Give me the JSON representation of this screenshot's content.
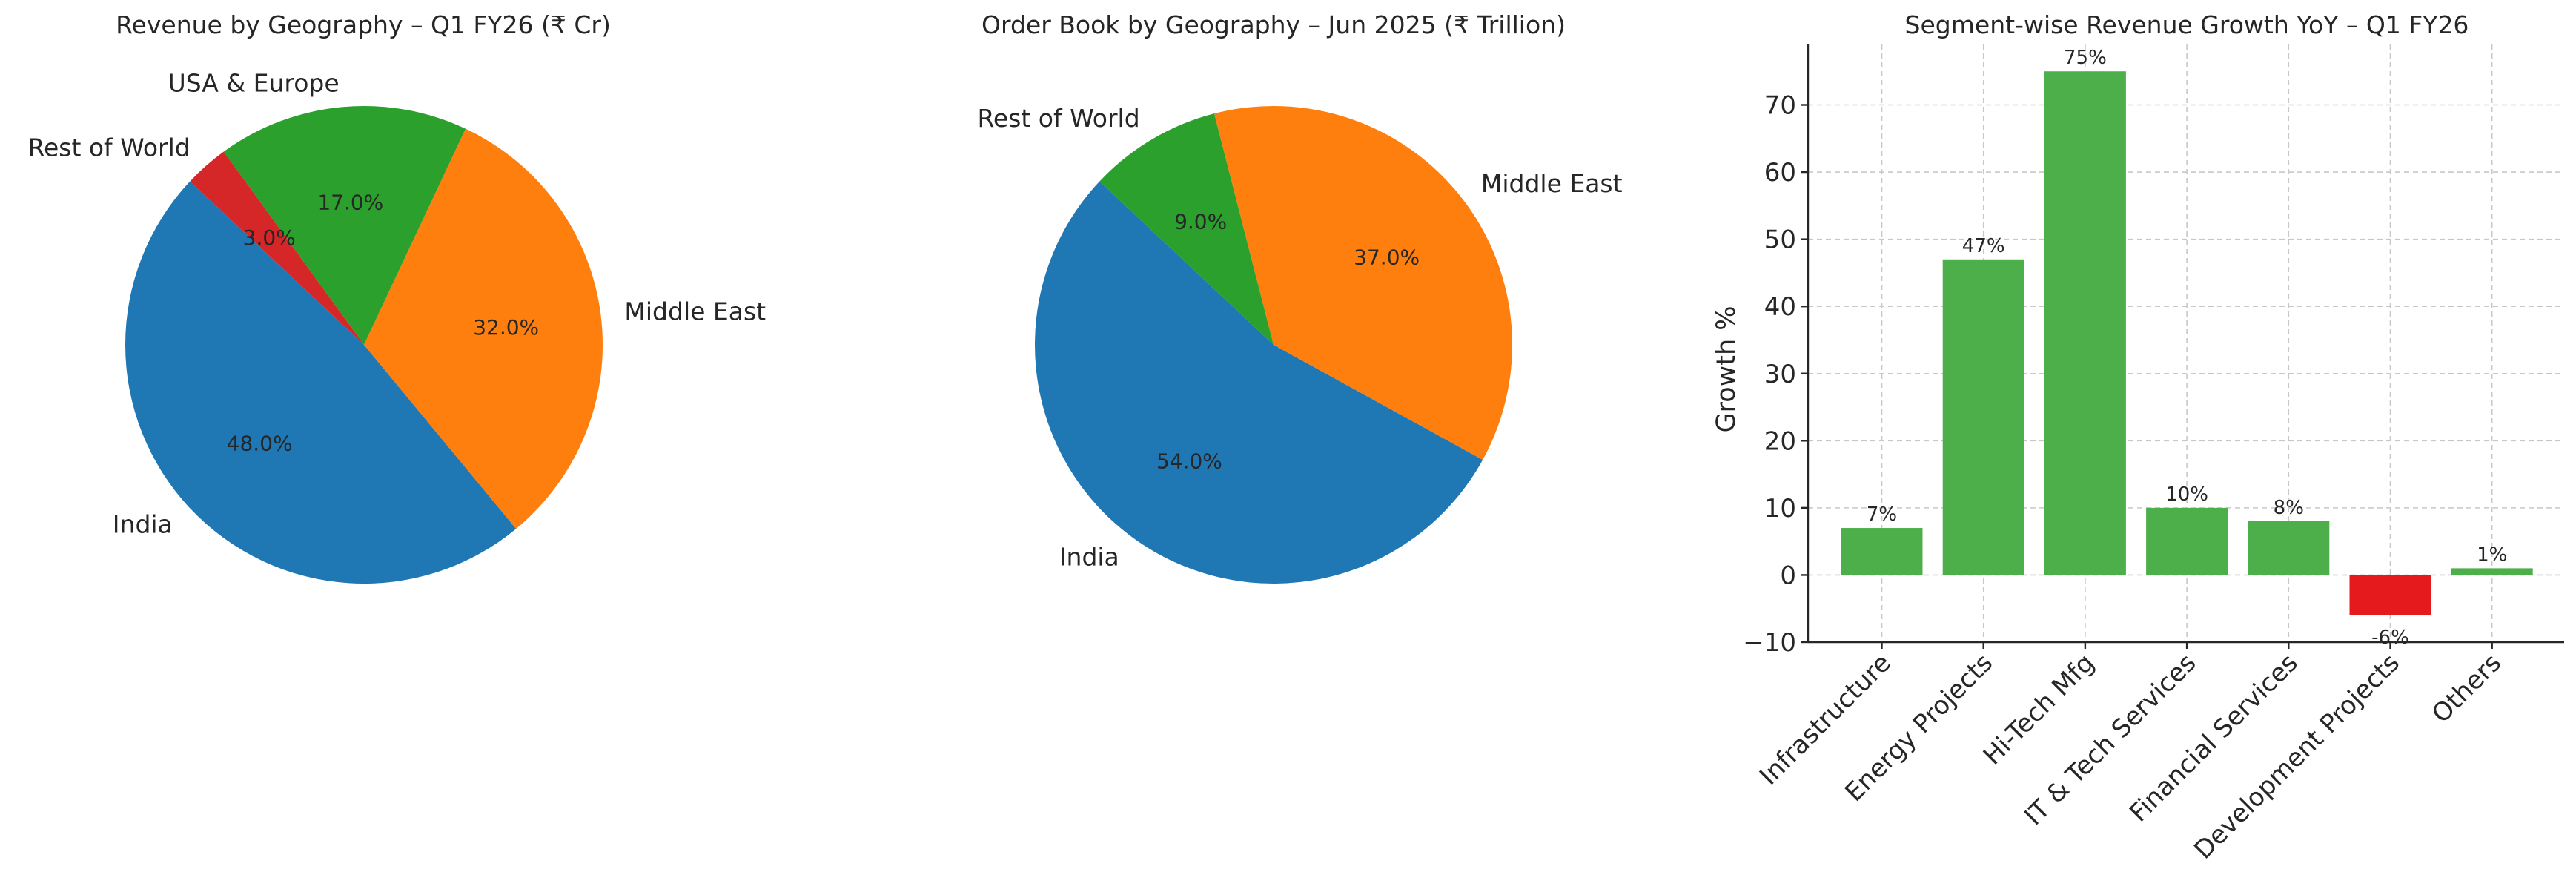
{
  "chart_data": [
    {
      "type": "pie",
      "title": "Revenue by Geography – Q1 FY26 (₹ Cr)",
      "slices": [
        {
          "label": "India",
          "value": 48.0,
          "pct_label": "48.0%",
          "color": "#1f77b4"
        },
        {
          "label": "Middle East",
          "value": 32.0,
          "pct_label": "32.0%",
          "color": "#ff7f0e"
        },
        {
          "label": "USA & Europe",
          "value": 17.0,
          "pct_label": "17.0%",
          "color": "#2ca02c"
        },
        {
          "label": "Rest of World",
          "value": 3.0,
          "pct_label": "3.0%",
          "color": "#d62728"
        }
      ]
    },
    {
      "type": "pie",
      "title": "Order Book by Geography – Jun 2025 (₹ Trillion)",
      "slices": [
        {
          "label": "India",
          "value": 54.0,
          "pct_label": "54.0%",
          "color": "#1f77b4"
        },
        {
          "label": "Middle East",
          "value": 37.0,
          "pct_label": "37.0%",
          "color": "#ff7f0e"
        },
        {
          "label": "Rest of World",
          "value": 9.0,
          "pct_label": "9.0%",
          "color": "#2ca02c"
        }
      ]
    },
    {
      "type": "bar",
      "title": "Segment-wise Revenue Growth YoY – Q1 FY26",
      "ylabel": "Growth %",
      "ylim": [
        -10,
        79
      ],
      "yticks": [
        -10,
        0,
        10,
        20,
        30,
        40,
        50,
        60,
        70
      ],
      "ytick_labels": [
        "−10",
        "0",
        "10",
        "20",
        "30",
        "40",
        "50",
        "60",
        "70"
      ],
      "grid": true,
      "categories": [
        "Infrastructure",
        "Energy Projects",
        "Hi-Tech Mfg",
        "IT & Tech Services",
        "Financial Services",
        "Development Projects",
        "Others"
      ],
      "values": [
        7,
        47,
        75,
        10,
        8,
        -6,
        1
      ],
      "data_labels": [
        "7%",
        "47%",
        "75%",
        "10%",
        "8%",
        "-6%",
        "1%"
      ],
      "colors": [
        "#4daf4a",
        "#4daf4a",
        "#4daf4a",
        "#4daf4a",
        "#4daf4a",
        "#e41a1c",
        "#4daf4a"
      ]
    }
  ]
}
